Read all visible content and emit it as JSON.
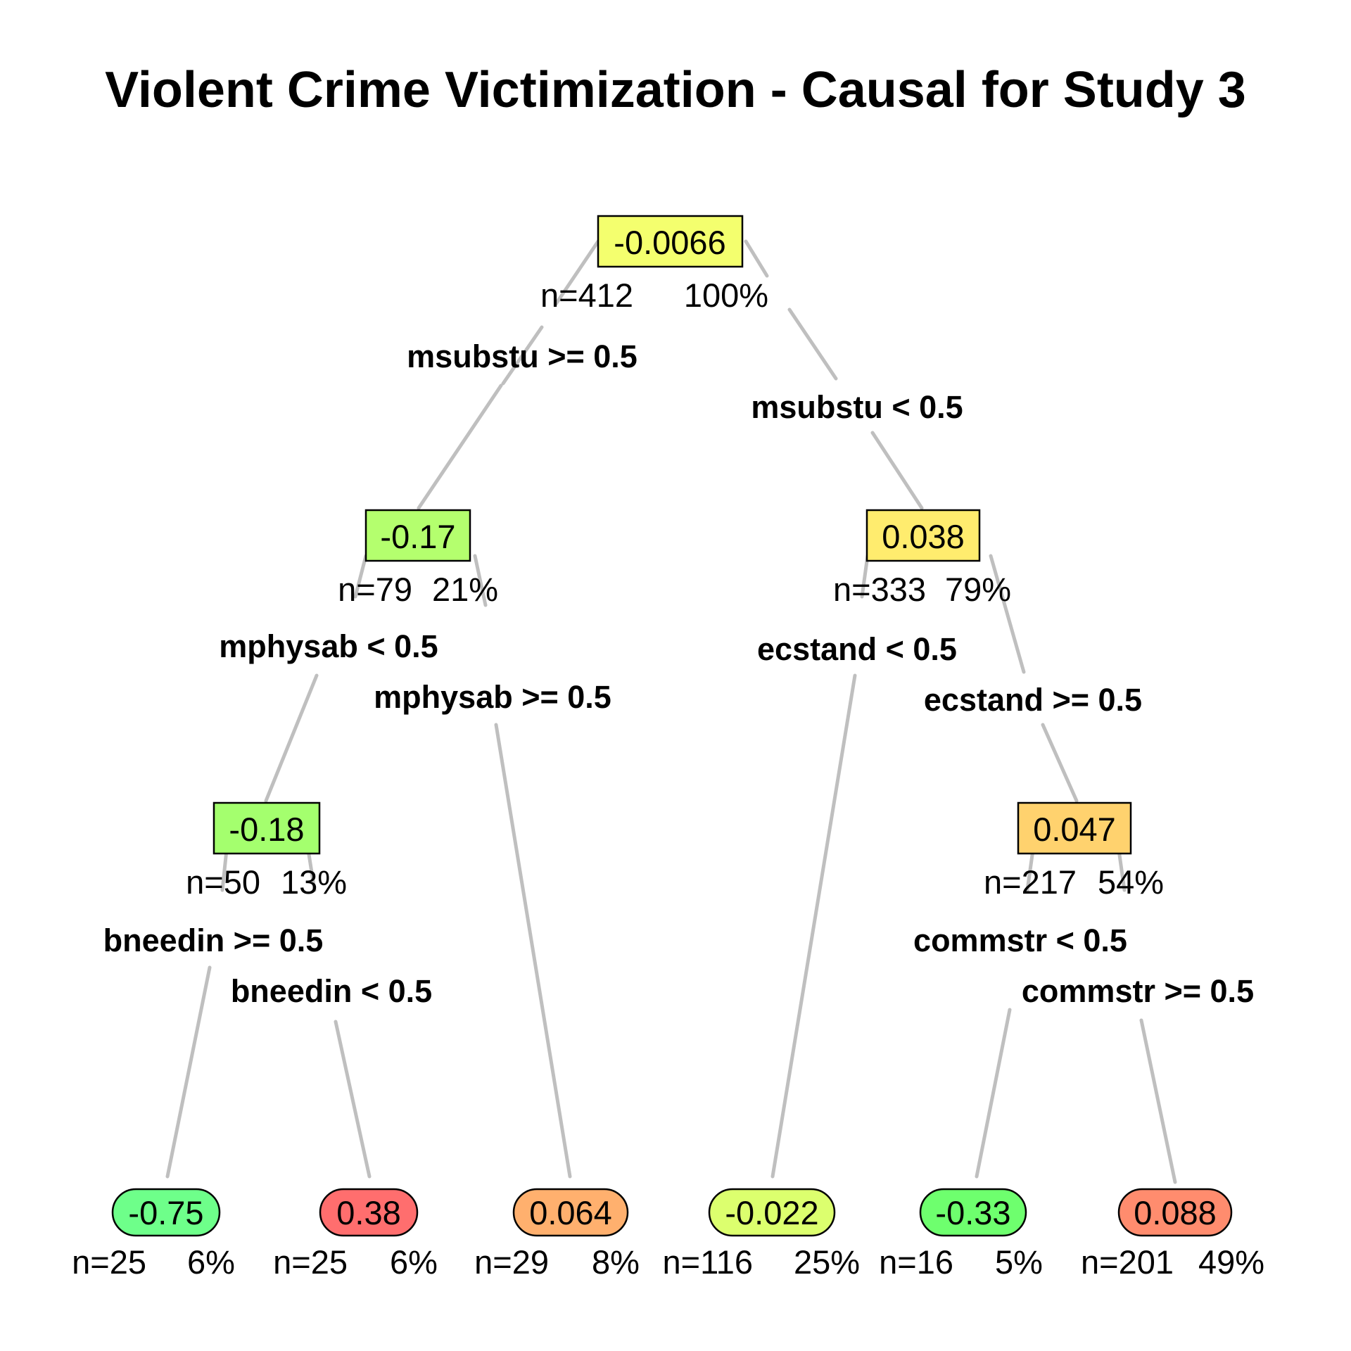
{
  "title": "Violent Crime Victimization - Causal for Study 3",
  "nodes": {
    "root": {
      "value": "-0.0066",
      "n": "n=412",
      "pct": "100%",
      "color": "#f4ff6e"
    },
    "n2": {
      "value": "-0.17",
      "n": "n=79",
      "pct": "21%",
      "color": "#b4ff6e"
    },
    "n3": {
      "value": "0.038",
      "n": "n=333",
      "pct": "79%",
      "color": "#ffec6e"
    },
    "n4": {
      "value": "-0.18",
      "n": "n=50",
      "pct": "13%",
      "color": "#a4ff6e"
    },
    "n7": {
      "value": "0.047",
      "n": "n=217",
      "pct": "54%",
      "color": "#ffd26e"
    },
    "leaf1": {
      "value": "-0.75",
      "n": "n=25",
      "pct": "6%",
      "color": "#6eff8a"
    },
    "leaf2": {
      "value": "0.38",
      "n": "n=25",
      "pct": "6%",
      "color": "#ff6e6e"
    },
    "leaf3": {
      "value": "0.064",
      "n": "n=29",
      "pct": "8%",
      "color": "#ffb06e"
    },
    "leaf4": {
      "value": "-0.022",
      "n": "n=116",
      "pct": "25%",
      "color": "#dcff6e"
    },
    "leaf5": {
      "value": "-0.33",
      "n": "n=16",
      "pct": "5%",
      "color": "#6eff6e"
    },
    "leaf6": {
      "value": "0.088",
      "n": "n=201",
      "pct": "49%",
      "color": "#ff8c6e"
    }
  },
  "splits": {
    "root_left": "msubstu >= 0.5",
    "root_right": "msubstu < 0.5",
    "n2_left": "mphysab < 0.5",
    "n2_right": "mphysab >= 0.5",
    "n3_left": "ecstand < 0.5",
    "n3_right": "ecstand >= 0.5",
    "n4_left": "bneedin >= 0.5",
    "n4_right": "bneedin < 0.5",
    "n7_left": "commstr < 0.5",
    "n7_right": "commstr >= 0.5"
  },
  "colors": {
    "edge": "#bfbfbf",
    "border": "#000000"
  }
}
